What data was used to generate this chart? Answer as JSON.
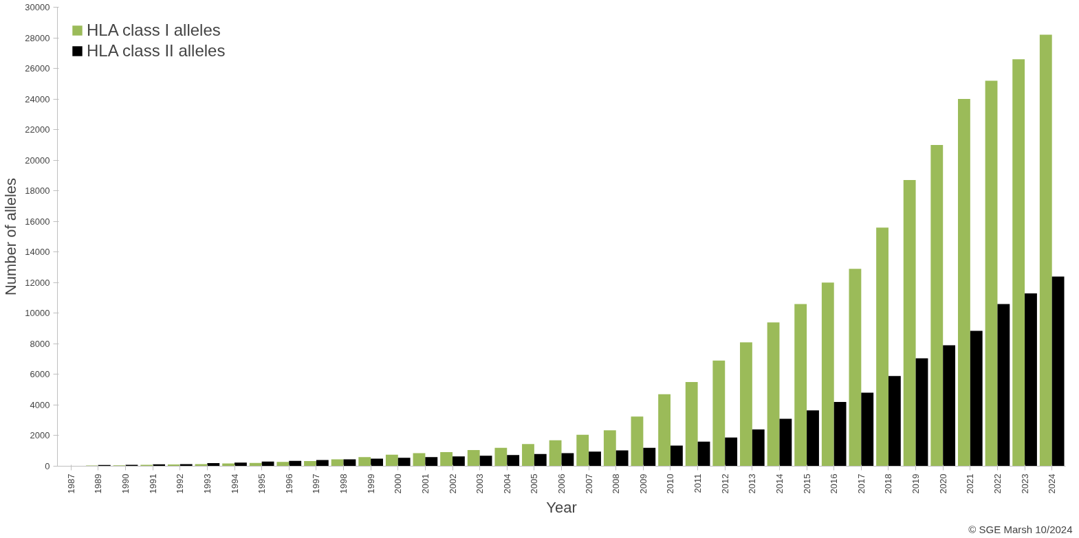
{
  "chart_data": {
    "type": "bar",
    "xlabel": "Year",
    "ylabel": "Number of alleles",
    "categories": [
      "1987",
      "1989",
      "1990",
      "1991",
      "1992",
      "1993",
      "1994",
      "1995",
      "1996",
      "1997",
      "1998",
      "1999",
      "2000",
      "2001",
      "2002",
      "2003",
      "2004",
      "2005",
      "2006",
      "2007",
      "2008",
      "2009",
      "2010",
      "2011",
      "2012",
      "2013",
      "2014",
      "2015",
      "2016",
      "2017",
      "2018",
      "2019",
      "2020",
      "2021",
      "2022",
      "2023",
      "2024"
    ],
    "series": [
      {
        "name": "HLA class I alleles",
        "color": "#9bbb59",
        "values": [
          null,
          50,
          60,
          90,
          110,
          140,
          180,
          210,
          280,
          340,
          450,
          600,
          750,
          850,
          920,
          1050,
          1200,
          1450,
          1700,
          2050,
          2350,
          3250,
          4700,
          5500,
          6900,
          8100,
          9400,
          10600,
          12000,
          12900,
          15600,
          18700,
          21000,
          24000,
          25200,
          26600,
          28200
        ]
      },
      {
        "name": "HLA class II alleles",
        "color": "#000000",
        "values": [
          null,
          80,
          90,
          120,
          140,
          200,
          240,
          300,
          350,
          400,
          450,
          490,
          550,
          600,
          640,
          680,
          730,
          800,
          850,
          950,
          1030,
          1200,
          1350,
          1600,
          1880,
          2400,
          3100,
          3650,
          4200,
          4800,
          5900,
          7050,
          7900,
          8850,
          10600,
          11300,
          12400
        ]
      }
    ],
    "ylim": [
      0,
      30000
    ],
    "yticks": [
      0,
      2000,
      4000,
      6000,
      8000,
      10000,
      12000,
      14000,
      16000,
      18000,
      20000,
      22000,
      24000,
      26000,
      28000,
      30000
    ],
    "grid": false,
    "legend": "top left",
    "annotations": [
      "© SGE Marsh 10/2024"
    ]
  }
}
